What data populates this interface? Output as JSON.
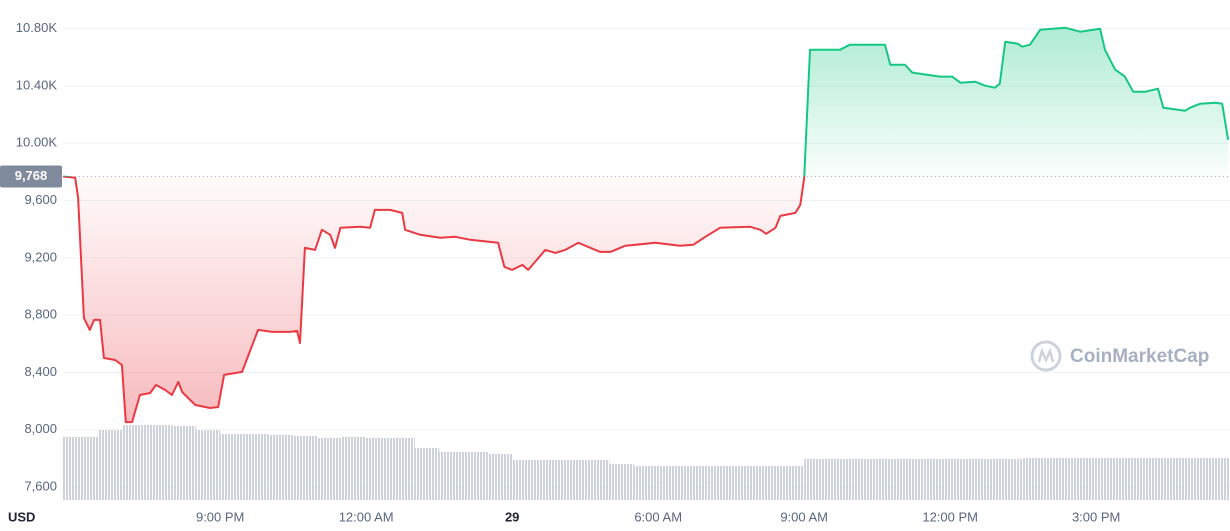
{
  "chart_data": {
    "type": "line",
    "x": [
      17.77,
      18.02,
      18.08,
      18.2,
      18.32,
      18.41,
      18.53,
      18.61,
      18.84,
      18.98,
      19.06,
      19.19,
      19.35,
      19.56,
      19.68,
      19.87,
      20.01,
      20.14,
      20.22,
      20.34,
      20.49,
      20.79,
      20.96,
      21.08,
      21.45,
      21.62,
      21.78,
      22.07,
      22.44,
      22.58,
      22.64,
      22.74,
      22.95,
      23.09,
      23.26,
      23.36,
      23.47,
      23.88,
      24.08,
      24.18,
      24.49,
      24.74,
      24.8,
      25.11,
      25.52,
      25.83,
      26.14,
      26.71,
      26.84,
      27.0,
      27.21,
      27.33,
      27.68,
      27.89,
      28.09,
      28.36,
      28.81,
      29.02,
      29.32,
      29.94,
      30.45,
      30.72,
      30.97,
      31.27,
      31.89,
      32.1,
      32.22,
      32.41,
      32.51,
      32.82,
      32.92,
      33.0,
      33.12,
      33.74,
      33.94,
      34.66,
      34.77,
      35.07,
      35.22,
      35.79,
      36.04,
      36.21,
      36.51,
      36.72,
      36.92,
      37.02,
      37.13,
      37.39,
      37.48,
      37.64,
      37.85,
      38.36,
      38.67,
      39.08,
      39.18,
      39.39,
      39.59,
      39.76,
      40.01,
      40.27,
      40.38,
      40.83,
      40.93,
      41.14,
      41.45,
      41.59,
      41.71
    ],
    "series": [
      {
        "color": "#16c784",
        "color_below": "#ea3943",
        "values": [
          9768,
          9759,
          9620,
          8781,
          8697,
          8767,
          8767,
          8501,
          8487,
          8452,
          8054,
          8054,
          8243,
          8257,
          8313,
          8278,
          8243,
          8334,
          8264,
          8222,
          8173,
          8152,
          8159,
          8383,
          8404,
          8557,
          8697,
          8683,
          8683,
          8690,
          8606,
          9270,
          9256,
          9396,
          9361,
          9270,
          9410,
          9417,
          9410,
          9535,
          9535,
          9514,
          9396,
          9361,
          9340,
          9347,
          9326,
          9305,
          9137,
          9116,
          9151,
          9116,
          9256,
          9235,
          9256,
          9305,
          9242,
          9242,
          9284,
          9305,
          9284,
          9291,
          9347,
          9410,
          9417,
          9396,
          9368,
          9410,
          9493,
          9514,
          9570,
          9759,
          10653,
          10653,
          10688,
          10688,
          10548,
          10548,
          10493,
          10465,
          10465,
          10423,
          10430,
          10402,
          10388,
          10416,
          10709,
          10695,
          10674,
          10688,
          10793,
          10807,
          10779,
          10800,
          10653,
          10514,
          10465,
          10360,
          10360,
          10381,
          10248,
          10227,
          10248,
          10276,
          10283,
          10276,
          10024
        ]
      }
    ],
    "baseline": {
      "value": 9768,
      "label": "9,768"
    },
    "xlim": [
      17.77,
      41.75
    ],
    "xticks": [
      {
        "value": 21,
        "label": "9:00 PM"
      },
      {
        "value": 24,
        "label": "12:00 AM"
      },
      {
        "value": 27,
        "label": "29"
      },
      {
        "value": 30,
        "label": "6:00 AM"
      },
      {
        "value": 33,
        "label": "9:00 AM"
      },
      {
        "value": 36,
        "label": "12:00 PM"
      },
      {
        "value": 39,
        "label": "3:00 PM"
      }
    ],
    "ylim": [
      7510,
      11000
    ],
    "yticks": [
      {
        "value": 7600,
        "label": "7,600"
      },
      {
        "value": 8000,
        "label": "8,000"
      },
      {
        "value": 8400,
        "label": "8,400"
      },
      {
        "value": 8800,
        "label": "8,800"
      },
      {
        "value": 9200,
        "label": "9,200"
      },
      {
        "value": 9600,
        "label": "9,600"
      },
      {
        "value": 10000,
        "label": "10.00K"
      },
      {
        "value": 10400,
        "label": "10.40K"
      },
      {
        "value": 10800,
        "label": "10.80K"
      }
    ],
    "y_unit": "USD",
    "grid": true,
    "watermark": "CoinMarketCap",
    "volume": {
      "color": "#cdd2db",
      "lim": [
        0,
        100
      ],
      "x": [
        18,
        18.5,
        19,
        19.5,
        20,
        20.5,
        21,
        21.5,
        22,
        22.5,
        23,
        23.5,
        24,
        24.5,
        25,
        25.5,
        26,
        26.5,
        27,
        27.5,
        28,
        28.5,
        29,
        29.5,
        30,
        30.5,
        31,
        31.5,
        32,
        32.5,
        33,
        33.5,
        34,
        34.5,
        35,
        35.5,
        36,
        36.5,
        37,
        37.5,
        38,
        38.5,
        39,
        39.5,
        40,
        40.5,
        41,
        41.5
      ],
      "values": [
        63,
        70,
        75,
        75,
        74,
        70,
        66,
        66,
        65,
        64,
        62,
        63,
        62,
        62,
        52,
        48,
        48,
        46,
        40,
        40,
        40,
        40,
        36,
        34,
        34,
        34,
        34,
        34,
        34,
        34,
        41,
        41,
        41,
        41,
        41,
        41,
        41,
        41,
        41,
        42,
        42,
        42,
        42,
        42,
        42,
        42,
        42,
        42
      ]
    }
  }
}
